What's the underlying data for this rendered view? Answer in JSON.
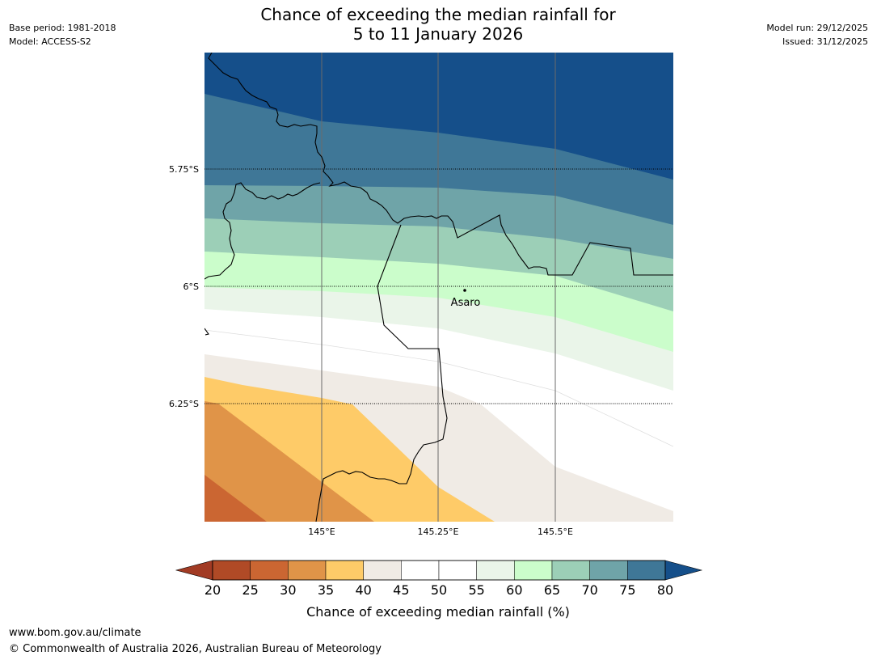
{
  "title": {
    "line1": "Chance of exceeding the median rainfall for",
    "line2": "5 to 11 January 2026"
  },
  "meta": {
    "base_period": "Base period: 1981-2018",
    "model": "Model: ACCESS-S2",
    "model_run": "Model run: 29/12/2025",
    "issued": "Issued: 31/12/2025"
  },
  "axes": {
    "lat_labels": [
      "5.75°S",
      "6°S",
      "6.25°S"
    ],
    "lon_labels": [
      "145°E",
      "145.25°E",
      "145.5°E"
    ]
  },
  "place": {
    "name": "Asaro"
  },
  "colorbar": {
    "ticks": [
      "20",
      "25",
      "30",
      "35",
      "40",
      "45",
      "50",
      "55",
      "60",
      "65",
      "70",
      "75",
      "80"
    ],
    "label": "Chance of exceeding median rainfall (%)",
    "colors": {
      "under": "#a23b24",
      "bins": [
        "#b04a26",
        "#cb6632",
        "#e09448",
        "#fecb68",
        "#f0ebe5",
        "#ffffff",
        "#ffffff",
        "#eaf5e9",
        "#cbfdcb",
        "#9ccfb7",
        "#6fa4a8",
        "#3f7797"
      ],
      "over": "#154f8a"
    }
  },
  "footer": {
    "url": "www.bom.gov.au/climate",
    "copyright": "© Commonwealth of Australia 2026, Australian Bureau of Meteorology"
  }
}
